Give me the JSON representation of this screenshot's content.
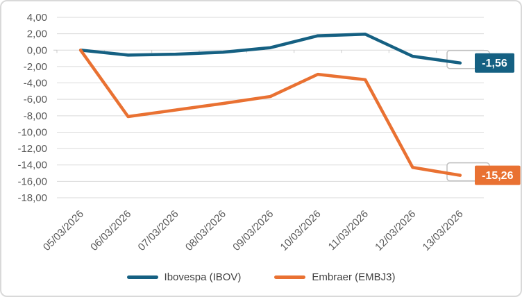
{
  "chart_data": {
    "type": "line",
    "title": "",
    "x": [
      "05/03/2026",
      "06/03/2026",
      "07/03/2026",
      "08/03/2026",
      "09/03/2026",
      "10/03/2026",
      "11/03/2026",
      "12/03/2026",
      "13/03/2026"
    ],
    "series": [
      {
        "name": "Ibovespa (IBOV)",
        "color": "#156082",
        "values": [
          0.0,
          -0.6,
          -0.5,
          -0.25,
          0.3,
          1.75,
          1.95,
          -0.75,
          -1.56
        ],
        "end_label": "-1,56"
      },
      {
        "name": "Embraer (EMBJ3)",
        "color": "#E97132",
        "values": [
          0.0,
          -8.1,
          -7.3,
          -6.5,
          -5.65,
          -2.95,
          -3.6,
          -14.3,
          -15.26
        ],
        "end_label": "-15,26"
      }
    ],
    "ylim": [
      -18,
      4
    ],
    "ytick_step": 2,
    "ytick_labels": [
      "4,00",
      "2,00",
      "0,00",
      "-2,00",
      "-4,00",
      "-6,00",
      "-8,00",
      "-10,00",
      "-12,00",
      "-14,00",
      "-16,00",
      "-18,00"
    ],
    "grid": true,
    "legend_position": "bottom",
    "xlabel": "",
    "ylabel": ""
  },
  "styles": {
    "grid_color": "#D9D9D9",
    "tick_color": "#C9C9C9",
    "axis_text_color": "#595959",
    "legend_text_color": "#404040",
    "backplate_border": "#BFBFBF",
    "card_border": "#D9D9D9",
    "background": "#FFFFFF",
    "label_text_color": "#FFFFFF"
  }
}
